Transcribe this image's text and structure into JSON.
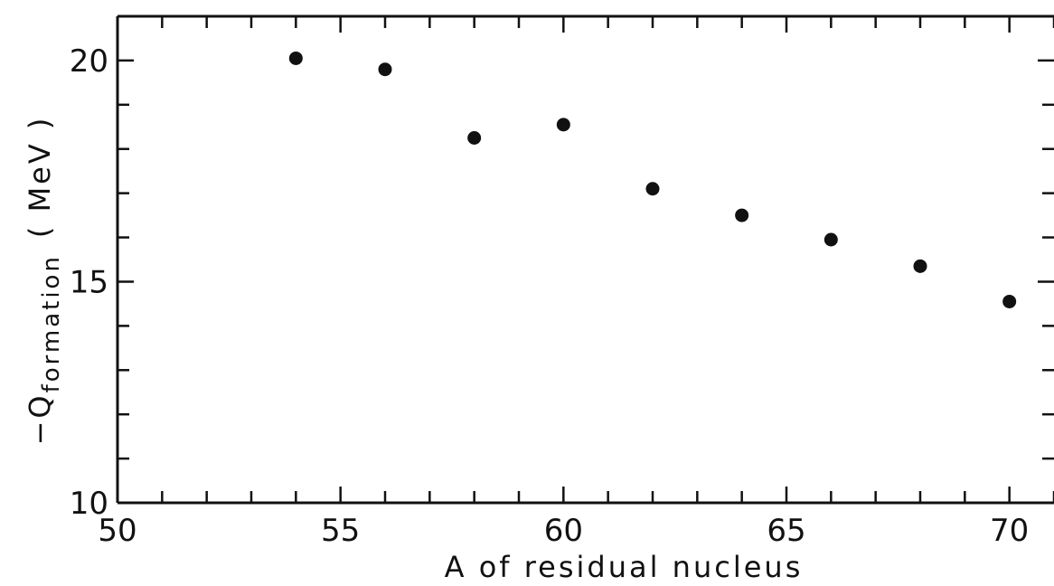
{
  "chart_data": {
    "type": "scatter",
    "xlabel": "A of residual nucleus",
    "ylabel_main": "−Q",
    "ylabel_sub": "formation",
    "ylabel_unit": "( MeV )",
    "xlim": [
      50,
      71
    ],
    "ylim": [
      10,
      21
    ],
    "x_ticks": [
      "50",
      "55",
      "60",
      "65",
      "70"
    ],
    "y_ticks": [
      "10",
      "15",
      "20"
    ],
    "grid": false,
    "points": [
      {
        "x": 54,
        "y": 20.05
      },
      {
        "x": 56,
        "y": 19.8
      },
      {
        "x": 58,
        "y": 18.25
      },
      {
        "x": 60,
        "y": 18.55
      },
      {
        "x": 62,
        "y": 17.1
      },
      {
        "x": 64,
        "y": 16.5
      },
      {
        "x": 66,
        "y": 15.95
      },
      {
        "x": 68,
        "y": 15.35
      },
      {
        "x": 70,
        "y": 14.55
      }
    ],
    "marker_color": "#111111"
  }
}
